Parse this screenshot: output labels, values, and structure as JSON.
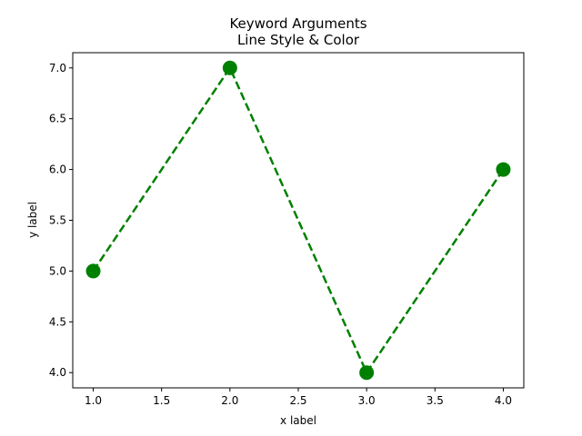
{
  "chart_data": {
    "type": "line",
    "title": [
      "Keyword Arguments",
      "Line Style & Color"
    ],
    "xlabel": "x label",
    "ylabel": "y label",
    "xlim": [
      0.85,
      4.15
    ],
    "ylim": [
      3.85,
      7.15
    ],
    "xticks": [
      1.0,
      1.5,
      2.0,
      2.5,
      3.0,
      3.5,
      4.0
    ],
    "xtick_labels": [
      "1.0",
      "1.5",
      "2.0",
      "2.5",
      "3.0",
      "3.5",
      "4.0"
    ],
    "yticks": [
      4.0,
      4.5,
      5.0,
      5.5,
      6.0,
      6.5,
      7.0
    ],
    "ytick_labels": [
      "4.0",
      "4.5",
      "5.0",
      "5.5",
      "6.0",
      "6.5",
      "7.0"
    ],
    "grid": false,
    "series": [
      {
        "x": [
          1,
          2,
          3,
          4
        ],
        "y": [
          5,
          7,
          4,
          6
        ],
        "color": "#008000",
        "linestyle": "dashed",
        "marker": "circle"
      }
    ]
  }
}
